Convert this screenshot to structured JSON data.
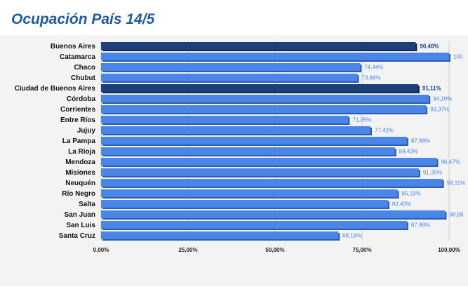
{
  "title": "Ocupación País 14/5",
  "colors": {
    "bar": "#4a86e8",
    "bar_highlight": "#1c3f7a",
    "bar_shadow": "#2a5db0",
    "value_text": "#4a86e8",
    "value_text_highlight": "#1c3f7a",
    "grid": "#cccccc",
    "title": "#1f5aa0"
  },
  "chart_data": {
    "type": "bar",
    "orientation": "horizontal",
    "title": "Ocupación País 14/5",
    "categories": [
      "Buenos Aires",
      "Catamarca",
      "Chaco",
      "Chubut",
      "Ciudad de Buenos Aires",
      "Córdoba",
      "Corrientes",
      "Entre Ríos",
      "Jujuy",
      "La Pampa",
      "La Rioja",
      "Mendoza",
      "Misiones",
      "Neuquén",
      "Río Negro",
      "Salta",
      "San Juan",
      "San Luis",
      "Santa Cruz"
    ],
    "values": [
      90.4,
      100,
      74.44,
      73.68,
      91.11,
      94.2,
      93.37,
      71.05,
      77.42,
      87.88,
      84.43,
      96.47,
      91.3,
      98.11,
      85.19,
      82.43,
      98.88,
      87.88,
      68.18
    ],
    "value_labels": [
      "90,40%",
      "100",
      "74,44%",
      "73,68%",
      "91,11%",
      "94,20%",
      "93,37%",
      "71,05%",
      "77,42%",
      "87,88%",
      "84,43%",
      "96,47%",
      "91,30%",
      "98,11%",
      "85,19%",
      "82,43%",
      "98,88",
      "87,88%",
      "68,18%"
    ],
    "highlighted": [
      "Buenos Aires",
      "Ciudad de Buenos Aires"
    ],
    "xlim": [
      0,
      100
    ],
    "xticks": [
      0,
      25,
      50,
      75,
      100
    ],
    "xtick_labels": [
      "0,00%",
      "25,00%",
      "50,00%",
      "75,00%",
      "100,00%"
    ],
    "xlabel": "",
    "ylabel": "",
    "grid": true
  }
}
